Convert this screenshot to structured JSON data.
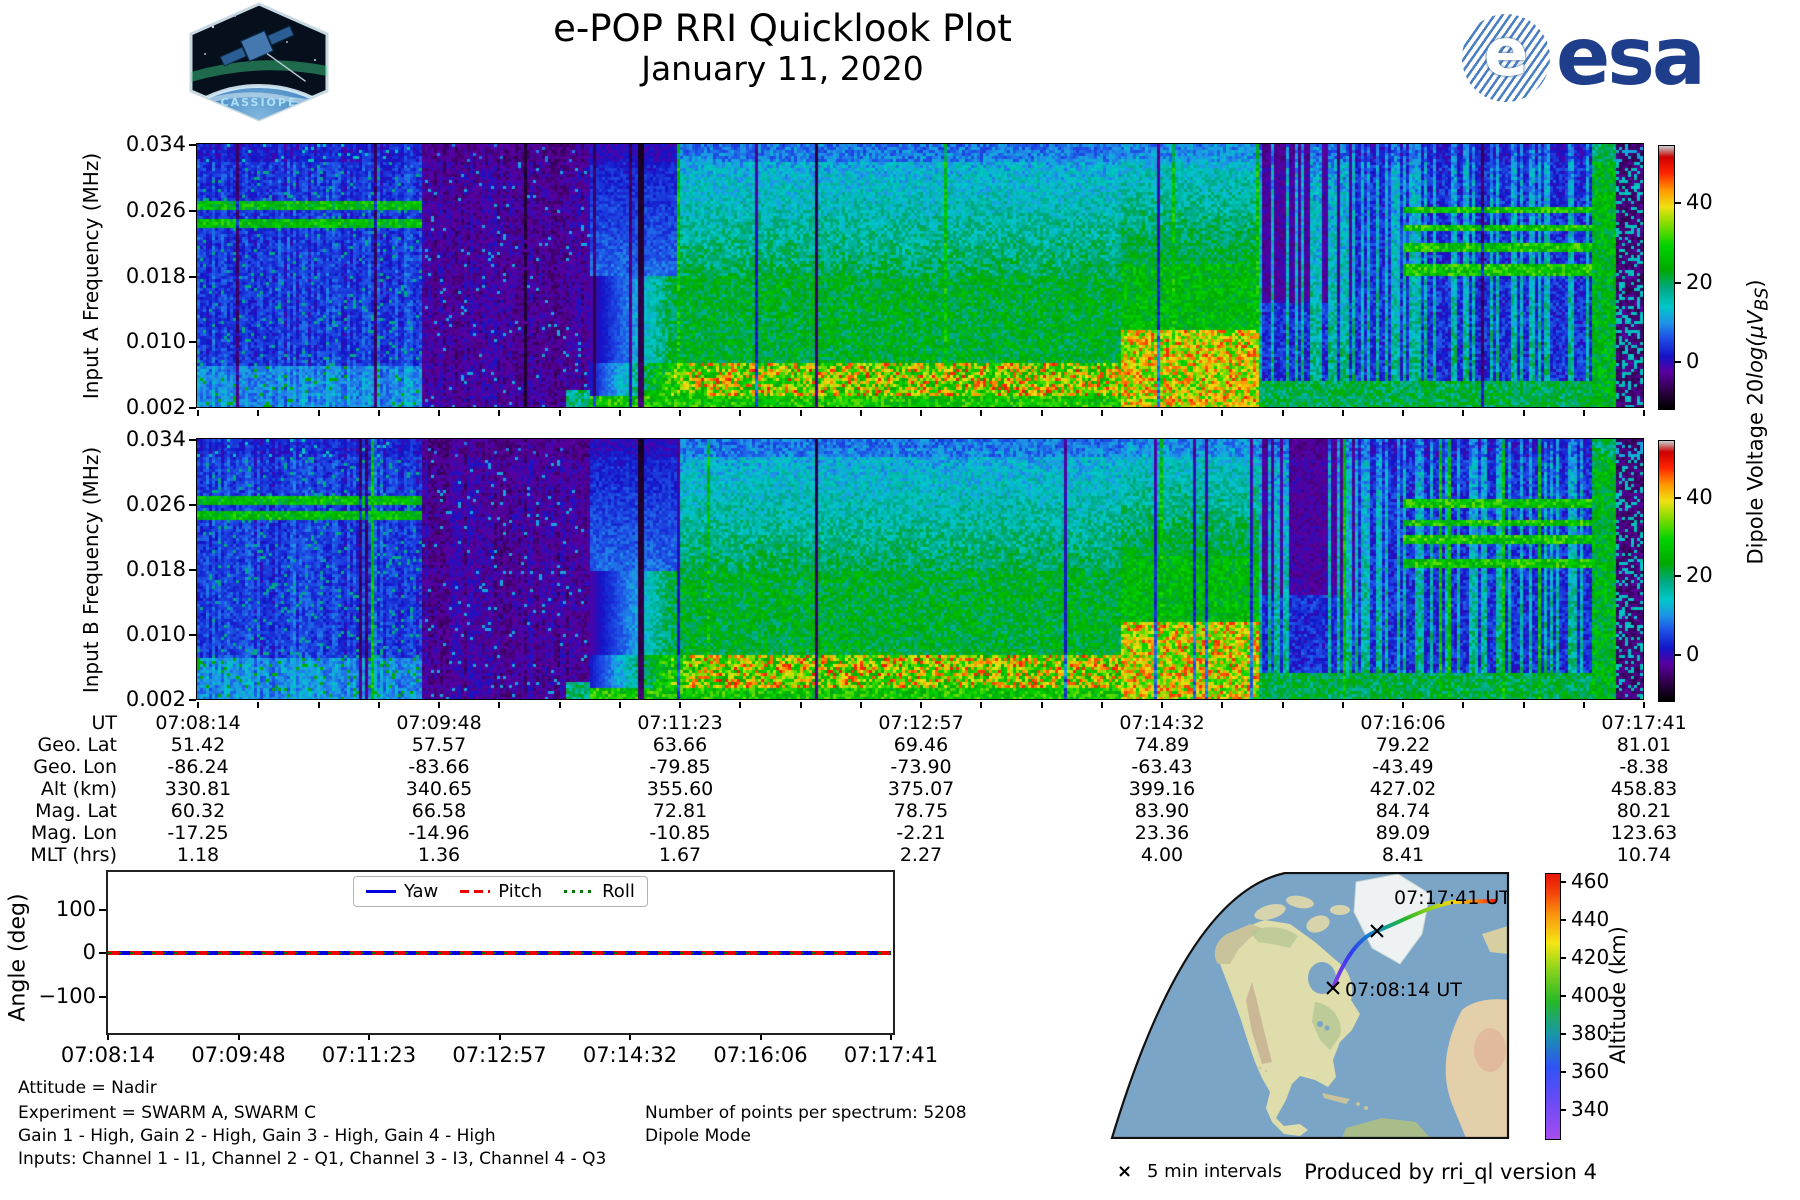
{
  "header": {
    "title": "e-POP RRI Quicklook Plot",
    "date": "January 11, 2020",
    "cassiope": {
      "name": "CASSIOPE"
    },
    "esa": {
      "wordmark": "esa",
      "blue": "#1e3e8c"
    }
  },
  "spectrogram_panels": [
    {
      "ylabel": "Input A Frequency (MHz)"
    },
    {
      "ylabel": "Input B Frequency (MHz)"
    }
  ],
  "freq_ticks": [
    "0.034",
    "0.026",
    "0.018",
    "0.010",
    "0.002"
  ],
  "dipole_colorbar": {
    "ticks": [
      "40",
      "20",
      "0"
    ],
    "label_prefix": "Dipole Voltage 20",
    "label_italic": "log(μV",
    "label_sub": "BS",
    "label_close": ")"
  },
  "ephemeris": {
    "rows": [
      {
        "label": "UT",
        "values": [
          "07:08:14",
          "07:09:48",
          "07:11:23",
          "07:12:57",
          "07:14:32",
          "07:16:06",
          "07:17:41"
        ]
      },
      {
        "label": "Geo. Lat",
        "values": [
          "51.42",
          "57.57",
          "63.66",
          "69.46",
          "74.89",
          "79.22",
          "81.01"
        ]
      },
      {
        "label": "Geo. Lon",
        "values": [
          "-86.24",
          "-83.66",
          "-79.85",
          "-73.90",
          "-63.43",
          "-43.49",
          "-8.38"
        ]
      },
      {
        "label": "Alt (km)",
        "values": [
          "330.81",
          "340.65",
          "355.60",
          "375.07",
          "399.16",
          "427.02",
          "458.83"
        ]
      },
      {
        "label": "Mag. Lat",
        "values": [
          "60.32",
          "66.58",
          "72.81",
          "78.75",
          "83.90",
          "84.74",
          "80.21"
        ]
      },
      {
        "label": "Mag. Lon",
        "values": [
          "-17.25",
          "-14.96",
          "-10.85",
          "-2.21",
          "23.36",
          "89.09",
          "123.63"
        ]
      },
      {
        "label": "MLT (hrs)",
        "values": [
          "1.18",
          "1.36",
          "1.67",
          "2.27",
          "4.00",
          "8.41",
          "10.74"
        ]
      }
    ]
  },
  "angle_plot": {
    "ylabel": "Angle (deg)",
    "yticks": [
      "100",
      "0",
      "−100"
    ],
    "xticks": [
      "07:08:14",
      "07:09:48",
      "07:11:23",
      "07:12:57",
      "07:14:32",
      "07:16:06",
      "07:17:41"
    ],
    "legend": [
      {
        "label": "Yaw",
        "color": "#0000dd",
        "style": "solid"
      },
      {
        "label": "Pitch",
        "color": "#ee0000",
        "style": "dashed"
      },
      {
        "label": "Roll",
        "color": "#007700",
        "style": "dotted"
      }
    ]
  },
  "annotations": {
    "attitude": "Attitude = Nadir",
    "experiment": "Experiment = SWARM A, SWARM C",
    "gains": "Gain 1 - High, Gain 2 - High, Gain 3 - High, Gain 4 - High",
    "inputs": "Inputs: Channel 1 - I1, Channel 2 - Q1, Channel 3 - I3, Channel 4 - Q3",
    "points_per_spectrum": "Number of points per spectrum: 5208",
    "mode": "Dipole Mode"
  },
  "map": {
    "start_label": "07:08:14 UT",
    "end_label": "07:17:41 UT",
    "interval_marker": "×",
    "interval_legend": "5 min intervals",
    "colorbar": {
      "label": "Altitude (km)",
      "ticks": [
        "460",
        "440",
        "420",
        "400",
        "380",
        "360",
        "340"
      ]
    }
  },
  "footer": {
    "produced_by": "Produced by rri_ql version 4"
  },
  "chart_data": [
    {
      "type": "heatmap",
      "title": "Input A spectrogram",
      "ylabel": "Input A Frequency (MHz)",
      "y_ticks_mhz": [
        0.002,
        0.01,
        0.018,
        0.026,
        0.034
      ],
      "x_range_ut": [
        "07:08:14",
        "07:17:41"
      ],
      "colorbar_label": "Dipole Voltage 20log(μV_BS)",
      "colorbar_ticks": [
        0,
        20,
        40
      ],
      "colorbar_range_est": [
        -11.6,
        54.7
      ],
      "colormap": "nipy_spectral"
    },
    {
      "type": "heatmap",
      "title": "Input B spectrogram",
      "ylabel": "Input B Frequency (MHz)",
      "y_ticks_mhz": [
        0.002,
        0.01,
        0.018,
        0.026,
        0.034
      ],
      "x_range_ut": [
        "07:08:14",
        "07:17:41"
      ],
      "colorbar_label": "Dipole Voltage 20log(μV_BS)",
      "colorbar_ticks": [
        0,
        20,
        40
      ],
      "colorbar_range_est": [
        -11.6,
        54.7
      ],
      "colormap": "nipy_spectral"
    },
    {
      "type": "table",
      "title": "Ephemeris",
      "columns_ut": [
        "07:08:14",
        "07:09:48",
        "07:11:23",
        "07:12:57",
        "07:14:32",
        "07:16:06",
        "07:17:41"
      ],
      "geo_lat": [
        51.42,
        57.57,
        63.66,
        69.46,
        74.89,
        79.22,
        81.01
      ],
      "geo_lon": [
        -86.24,
        -83.66,
        -79.85,
        -73.9,
        -63.43,
        -43.49,
        -8.38
      ],
      "alt_km": [
        330.81,
        340.65,
        355.6,
        375.07,
        399.16,
        427.02,
        458.83
      ],
      "mag_lat": [
        60.32,
        66.58,
        72.81,
        78.75,
        83.9,
        84.74,
        80.21
      ],
      "mag_lon": [
        -17.25,
        -14.96,
        -10.85,
        -2.21,
        23.36,
        89.09,
        123.63
      ],
      "mlt_hrs": [
        1.18,
        1.36,
        1.67,
        2.27,
        4.0,
        8.41,
        10.74
      ]
    },
    {
      "type": "line",
      "title": "Attitude angles",
      "ylabel": "Angle (deg)",
      "ylim": [
        -190,
        190
      ],
      "x": [
        "07:08:14",
        "07:09:48",
        "07:11:23",
        "07:12:57",
        "07:14:32",
        "07:16:06",
        "07:17:41"
      ],
      "series": [
        {
          "name": "Yaw",
          "values": [
            0,
            0,
            0,
            0,
            0,
            0,
            0
          ]
        },
        {
          "name": "Pitch",
          "values": [
            0,
            0,
            0,
            0,
            0,
            0,
            0
          ]
        },
        {
          "name": "Roll",
          "values": [
            0,
            0,
            0,
            0,
            0,
            0,
            0
          ]
        }
      ],
      "legend_position": "upper center"
    },
    {
      "type": "scatter",
      "title": "Ground track colored by altitude",
      "start_ut": "07:08:14",
      "end_ut": "07:17:41",
      "altitude_km_along_track": [
        330.81,
        340.65,
        355.6,
        375.07,
        399.16,
        427.02,
        458.83
      ],
      "colorbar": {
        "label": "Altitude (km)",
        "ticks": [
          340,
          360,
          380,
          400,
          420,
          440,
          460
        ]
      },
      "marker_interval": "5 min"
    }
  ]
}
